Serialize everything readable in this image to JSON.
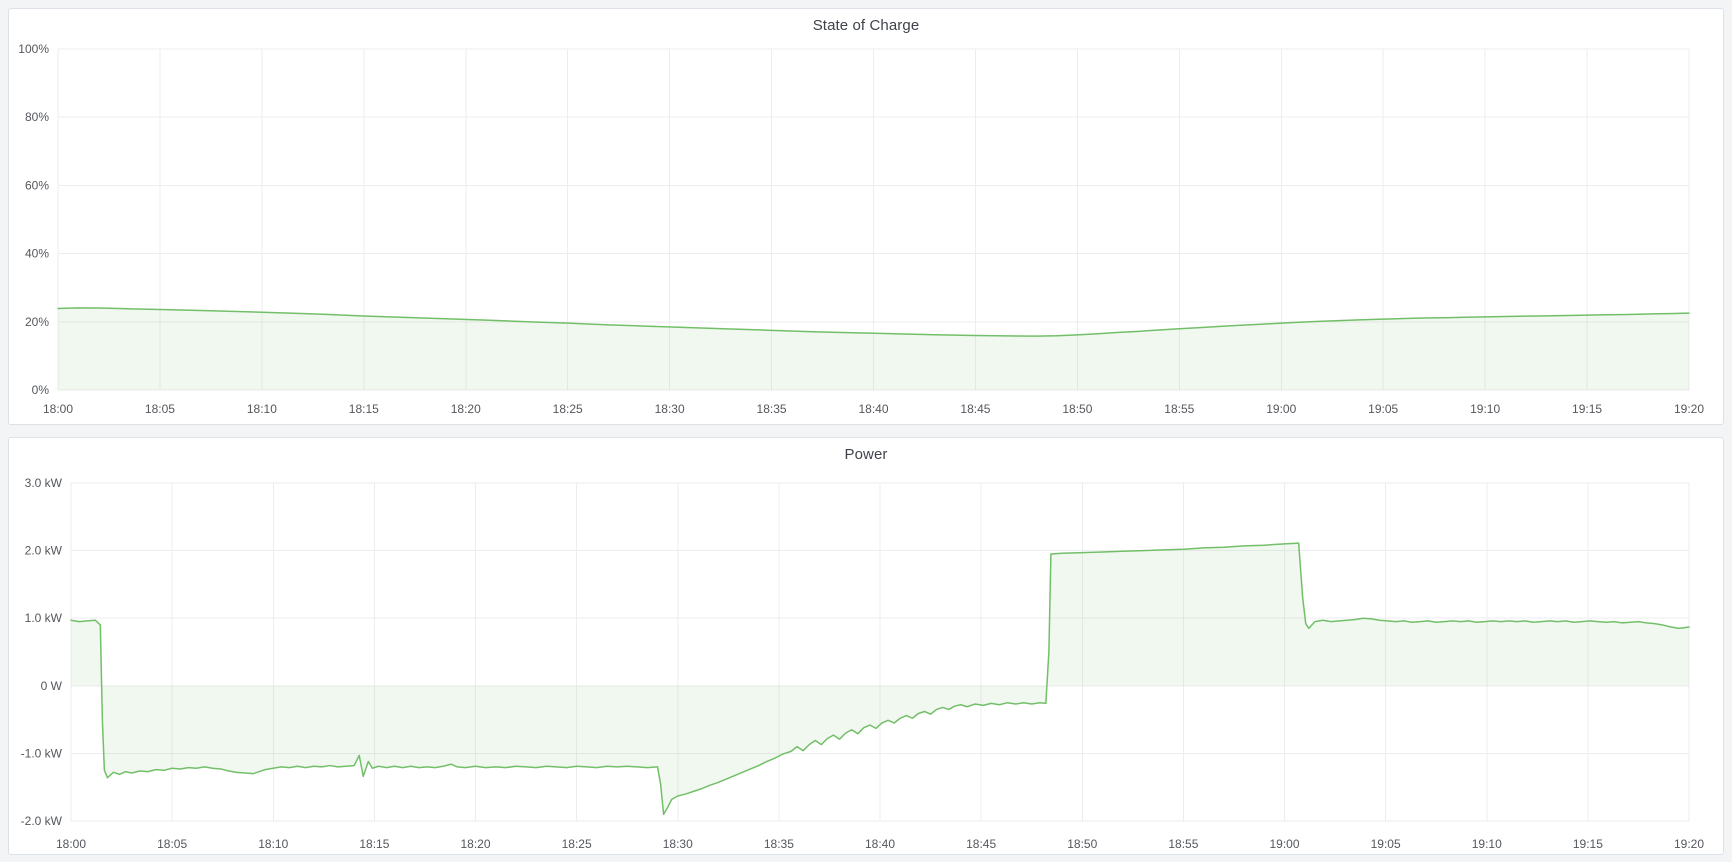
{
  "chart_data": [
    {
      "type": "area",
      "title": "State of Charge",
      "xlabel": "",
      "ylabel": "",
      "ylim": [
        0,
        100
      ],
      "x_range_minutes": [
        0,
        80
      ],
      "grid": true,
      "legend_position": "none",
      "x_ticks": [
        "18:00",
        "18:05",
        "18:10",
        "18:15",
        "18:20",
        "18:25",
        "18:30",
        "18:35",
        "18:40",
        "18:45",
        "18:50",
        "18:55",
        "19:00",
        "19:05",
        "19:10",
        "19:15",
        "19:20"
      ],
      "y_ticks": [
        {
          "v": 100,
          "label": "100%"
        },
        {
          "v": 80,
          "label": "80%"
        },
        {
          "v": 60,
          "label": "60%"
        },
        {
          "v": 40,
          "label": "40%"
        },
        {
          "v": 20,
          "label": "20%"
        },
        {
          "v": 0,
          "label": "0%"
        }
      ],
      "series": [
        {
          "name": "State of Charge",
          "unit": "%",
          "color": "#73BF69",
          "fill": "rgba(115,191,105,0.11)",
          "points": [
            [
              0,
              23.9
            ],
            [
              1,
              24.1
            ],
            [
              2,
              24.05
            ],
            [
              3,
              23.9
            ],
            [
              5,
              23.6
            ],
            [
              7,
              23.3
            ],
            [
              9,
              23.0
            ],
            [
              11,
              22.6
            ],
            [
              13,
              22.2
            ],
            [
              15,
              21.7
            ],
            [
              17,
              21.3
            ],
            [
              19,
              20.9
            ],
            [
              21,
              20.5
            ],
            [
              23,
              20.0
            ],
            [
              25,
              19.6
            ],
            [
              27,
              19.1
            ],
            [
              29,
              18.7
            ],
            [
              31,
              18.3
            ],
            [
              33,
              17.9
            ],
            [
              35,
              17.5
            ],
            [
              37,
              17.1
            ],
            [
              39,
              16.8
            ],
            [
              41,
              16.5
            ],
            [
              43,
              16.2
            ],
            [
              45,
              16.0
            ],
            [
              47,
              15.85
            ],
            [
              48,
              15.8
            ],
            [
              49,
              15.9
            ],
            [
              50,
              16.15
            ],
            [
              51,
              16.5
            ],
            [
              52,
              16.9
            ],
            [
              53,
              17.2
            ],
            [
              54,
              17.6
            ],
            [
              55,
              17.95
            ],
            [
              56,
              18.3
            ],
            [
              57,
              18.65
            ],
            [
              58,
              19.0
            ],
            [
              59,
              19.3
            ],
            [
              60,
              19.6
            ],
            [
              61,
              19.9
            ],
            [
              62,
              20.15
            ],
            [
              63,
              20.4
            ],
            [
              64,
              20.6
            ],
            [
              65,
              20.8
            ],
            [
              66,
              20.95
            ],
            [
              67,
              21.1
            ],
            [
              68,
              21.2
            ],
            [
              69,
              21.35
            ],
            [
              70,
              21.45
            ],
            [
              71,
              21.55
            ],
            [
              72,
              21.65
            ],
            [
              73,
              21.75
            ],
            [
              74,
              21.85
            ],
            [
              75,
              21.95
            ],
            [
              76,
              22.05
            ],
            [
              77,
              22.15
            ],
            [
              78,
              22.3
            ],
            [
              79,
              22.4
            ],
            [
              80,
              22.55
            ]
          ]
        }
      ]
    },
    {
      "type": "area",
      "title": "Power",
      "xlabel": "",
      "ylabel": "",
      "ylim": [
        -2,
        3
      ],
      "x_range_minutes": [
        0,
        80
      ],
      "grid": true,
      "legend_position": "none",
      "x_ticks": [
        "18:00",
        "18:05",
        "18:10",
        "18:15",
        "18:20",
        "18:25",
        "18:30",
        "18:35",
        "18:40",
        "18:45",
        "18:50",
        "18:55",
        "19:00",
        "19:05",
        "19:10",
        "19:15",
        "19:20"
      ],
      "y_ticks": [
        {
          "v": 3,
          "label": "3.0 kW"
        },
        {
          "v": 2,
          "label": "2.0 kW"
        },
        {
          "v": 1,
          "label": "1.0 kW"
        },
        {
          "v": 0,
          "label": "0 W"
        },
        {
          "v": -1,
          "label": "-1.0 kW"
        },
        {
          "v": -2,
          "label": "-2.0 kW"
        }
      ],
      "series": [
        {
          "name": "Power",
          "unit": "kW",
          "color": "#73BF69",
          "fill": "rgba(115,191,105,0.11)",
          "points": [
            [
              0,
              0.97
            ],
            [
              0.4,
              0.95
            ],
            [
              0.8,
              0.96
            ],
            [
              1.2,
              0.97
            ],
            [
              1.45,
              0.9
            ],
            [
              1.55,
              -0.5
            ],
            [
              1.65,
              -1.25
            ],
            [
              1.8,
              -1.36
            ],
            [
              2.1,
              -1.28
            ],
            [
              2.4,
              -1.31
            ],
            [
              2.7,
              -1.27
            ],
            [
              3.0,
              -1.29
            ],
            [
              3.4,
              -1.26
            ],
            [
              3.8,
              -1.27
            ],
            [
              4.2,
              -1.24
            ],
            [
              4.6,
              -1.25
            ],
            [
              5.0,
              -1.22
            ],
            [
              5.4,
              -1.23
            ],
            [
              5.8,
              -1.21
            ],
            [
              6.2,
              -1.22
            ],
            [
              6.6,
              -1.2
            ],
            [
              7.0,
              -1.22
            ],
            [
              7.4,
              -1.23
            ],
            [
              7.8,
              -1.26
            ],
            [
              8.2,
              -1.28
            ],
            [
              8.6,
              -1.29
            ],
            [
              9.0,
              -1.3
            ],
            [
              9.3,
              -1.27
            ],
            [
              9.6,
              -1.24
            ],
            [
              10,
              -1.22
            ],
            [
              10.4,
              -1.2
            ],
            [
              10.8,
              -1.21
            ],
            [
              11.2,
              -1.19
            ],
            [
              11.6,
              -1.21
            ],
            [
              12,
              -1.19
            ],
            [
              12.4,
              -1.2
            ],
            [
              12.8,
              -1.18
            ],
            [
              13.2,
              -1.2
            ],
            [
              13.6,
              -1.19
            ],
            [
              14.0,
              -1.18
            ],
            [
              14.25,
              -1.03
            ],
            [
              14.45,
              -1.34
            ],
            [
              14.7,
              -1.12
            ],
            [
              14.9,
              -1.22
            ],
            [
              15.2,
              -1.19
            ],
            [
              15.6,
              -1.21
            ],
            [
              16,
              -1.19
            ],
            [
              16.4,
              -1.21
            ],
            [
              16.8,
              -1.19
            ],
            [
              17.2,
              -1.21
            ],
            [
              17.6,
              -1.2
            ],
            [
              18,
              -1.21
            ],
            [
              18.4,
              -1.19
            ],
            [
              18.8,
              -1.16
            ],
            [
              19.1,
              -1.2
            ],
            [
              19.5,
              -1.21
            ],
            [
              20,
              -1.19
            ],
            [
              20.5,
              -1.21
            ],
            [
              21,
              -1.2
            ],
            [
              21.5,
              -1.21
            ],
            [
              22,
              -1.19
            ],
            [
              22.5,
              -1.2
            ],
            [
              23,
              -1.21
            ],
            [
              23.5,
              -1.19
            ],
            [
              24,
              -1.2
            ],
            [
              24.5,
              -1.21
            ],
            [
              25,
              -1.19
            ],
            [
              25.5,
              -1.2
            ],
            [
              26,
              -1.21
            ],
            [
              26.5,
              -1.19
            ],
            [
              27,
              -1.2
            ],
            [
              27.5,
              -1.19
            ],
            [
              28,
              -1.2
            ],
            [
              28.5,
              -1.21
            ],
            [
              29.0,
              -1.2
            ],
            [
              29.15,
              -1.45
            ],
            [
              29.3,
              -1.9
            ],
            [
              29.5,
              -1.8
            ],
            [
              29.7,
              -1.68
            ],
            [
              30.0,
              -1.63
            ],
            [
              30.4,
              -1.6
            ],
            [
              30.8,
              -1.56
            ],
            [
              31.2,
              -1.52
            ],
            [
              31.6,
              -1.47
            ],
            [
              32.0,
              -1.43
            ],
            [
              32.4,
              -1.38
            ],
            [
              32.8,
              -1.33
            ],
            [
              33.2,
              -1.28
            ],
            [
              33.6,
              -1.23
            ],
            [
              34.0,
              -1.18
            ],
            [
              34.4,
              -1.12
            ],
            [
              34.8,
              -1.07
            ],
            [
              35.2,
              -1.01
            ],
            [
              35.6,
              -0.97
            ],
            [
              35.9,
              -0.9
            ],
            [
              36.2,
              -0.96
            ],
            [
              36.5,
              -0.87
            ],
            [
              36.8,
              -0.81
            ],
            [
              37.1,
              -0.87
            ],
            [
              37.4,
              -0.78
            ],
            [
              37.7,
              -0.73
            ],
            [
              38.0,
              -0.79
            ],
            [
              38.3,
              -0.7
            ],
            [
              38.6,
              -0.65
            ],
            [
              38.9,
              -0.71
            ],
            [
              39.2,
              -0.62
            ],
            [
              39.5,
              -0.58
            ],
            [
              39.8,
              -0.63
            ],
            [
              40.1,
              -0.55
            ],
            [
              40.4,
              -0.51
            ],
            [
              40.7,
              -0.55
            ],
            [
              41.0,
              -0.48
            ],
            [
              41.3,
              -0.44
            ],
            [
              41.6,
              -0.48
            ],
            [
              41.9,
              -0.41
            ],
            [
              42.2,
              -0.38
            ],
            [
              42.5,
              -0.42
            ],
            [
              42.8,
              -0.35
            ],
            [
              43.1,
              -0.32
            ],
            [
              43.4,
              -0.35
            ],
            [
              43.7,
              -0.3
            ],
            [
              44.0,
              -0.28
            ],
            [
              44.3,
              -0.31
            ],
            [
              44.7,
              -0.27
            ],
            [
              45.1,
              -0.29
            ],
            [
              45.5,
              -0.26
            ],
            [
              45.9,
              -0.28
            ],
            [
              46.3,
              -0.25
            ],
            [
              46.7,
              -0.27
            ],
            [
              47.1,
              -0.25
            ],
            [
              47.5,
              -0.27
            ],
            [
              47.9,
              -0.25
            ],
            [
              48.2,
              -0.26
            ],
            [
              48.35,
              0.5
            ],
            [
              48.45,
              1.95
            ],
            [
              49,
              1.96
            ],
            [
              50,
              1.97
            ],
            [
              51,
              1.98
            ],
            [
              52,
              1.99
            ],
            [
              53,
              2.0
            ],
            [
              54,
              2.01
            ],
            [
              55,
              2.02
            ],
            [
              56,
              2.04
            ],
            [
              57,
              2.05
            ],
            [
              58,
              2.07
            ],
            [
              59,
              2.08
            ],
            [
              60,
              2.1
            ],
            [
              60.7,
              2.11
            ],
            [
              60.9,
              1.3
            ],
            [
              61.05,
              0.92
            ],
            [
              61.2,
              0.85
            ],
            [
              61.5,
              0.95
            ],
            [
              61.9,
              0.97
            ],
            [
              62.3,
              0.95
            ],
            [
              62.7,
              0.96
            ],
            [
              63.1,
              0.97
            ],
            [
              63.5,
              0.98
            ],
            [
              63.9,
              1.0
            ],
            [
              64.3,
              0.99
            ],
            [
              64.7,
              0.97
            ],
            [
              65.1,
              0.96
            ],
            [
              65.5,
              0.95
            ],
            [
              65.9,
              0.96
            ],
            [
              66.3,
              0.94
            ],
            [
              66.7,
              0.95
            ],
            [
              67.1,
              0.96
            ],
            [
              67.5,
              0.94
            ],
            [
              67.9,
              0.95
            ],
            [
              68.3,
              0.96
            ],
            [
              68.7,
              0.95
            ],
            [
              69.1,
              0.96
            ],
            [
              69.5,
              0.94
            ],
            [
              69.9,
              0.95
            ],
            [
              70.3,
              0.96
            ],
            [
              70.7,
              0.95
            ],
            [
              71.1,
              0.96
            ],
            [
              71.5,
              0.95
            ],
            [
              71.9,
              0.96
            ],
            [
              72.3,
              0.94
            ],
            [
              72.7,
              0.95
            ],
            [
              73.1,
              0.96
            ],
            [
              73.5,
              0.95
            ],
            [
              73.9,
              0.96
            ],
            [
              74.3,
              0.94
            ],
            [
              74.7,
              0.95
            ],
            [
              75.1,
              0.96
            ],
            [
              75.5,
              0.95
            ],
            [
              75.9,
              0.94
            ],
            [
              76.3,
              0.95
            ],
            [
              76.7,
              0.93
            ],
            [
              77.1,
              0.94
            ],
            [
              77.5,
              0.95
            ],
            [
              77.9,
              0.93
            ],
            [
              78.3,
              0.92
            ],
            [
              78.7,
              0.9
            ],
            [
              79.1,
              0.87
            ],
            [
              79.5,
              0.85
            ],
            [
              79.8,
              0.86
            ],
            [
              80,
              0.87
            ]
          ]
        }
      ]
    }
  ]
}
